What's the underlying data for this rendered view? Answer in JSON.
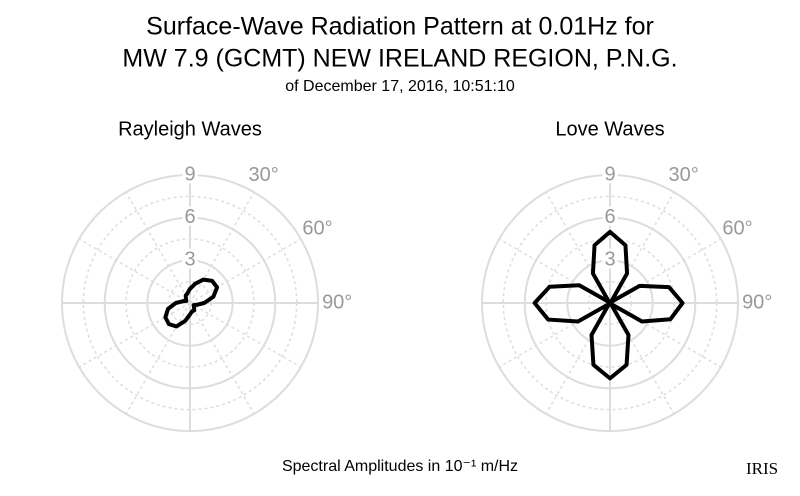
{
  "title": [
    "Surface-Wave Radiation Pattern at 0.01Hz for",
    "MW 7.9 (GCMT) NEW IRELAND REGION, P.N.G."
  ],
  "subtitle": "of December 17, 2016, 10:51:10",
  "caption": "Spectral Amplitudes in 10⁻¹ m/Hz",
  "logo": "IRIS",
  "chart_data": [
    {
      "type": "polar",
      "title": "Rayleigh Waves",
      "theta": [
        0,
        15,
        30,
        45,
        60,
        75,
        90,
        105,
        120,
        135,
        150,
        165,
        180,
        195,
        210,
        225,
        240,
        255,
        270,
        285,
        300,
        315,
        330,
        345
      ],
      "series": [
        {
          "color": "#000000",
          "values": [
            1.0,
            1.4,
            1.9,
            2.2,
            2.2,
            1.7,
            1.0,
            0.5,
            0.3,
            0.4,
            0.6,
            0.6,
            0.8,
            1.3,
            1.9,
            2.1,
            2.0,
            1.6,
            1.0,
            0.5,
            0.3,
            0.4,
            0.6,
            0.7
          ]
        }
      ],
      "rlim": [
        0,
        9
      ],
      "rticks": [
        3,
        6,
        9
      ],
      "thetaticks": [
        {
          "value": 30,
          "label": "30°"
        },
        {
          "value": 60,
          "label": "60°"
        },
        {
          "value": 90,
          "label": "90°"
        }
      ],
      "direction": "clockwise",
      "zero": "north",
      "grid": true
    },
    {
      "type": "polar",
      "title": "Love Waves",
      "theta": [
        0,
        15,
        30,
        45,
        60,
        75,
        90,
        105,
        120,
        135,
        150,
        165,
        180,
        195,
        210,
        225,
        240,
        255,
        270,
        285,
        300,
        315,
        330,
        345
      ],
      "series": [
        {
          "color": "#000000",
          "values": [
            5.0,
            4.2,
            2.4,
            0.1,
            2.4,
            4.3,
            5.1,
            4.4,
            2.6,
            0.1,
            2.6,
            4.5,
            5.3,
            4.5,
            2.6,
            0.1,
            2.6,
            4.5,
            5.3,
            4.4,
            2.5,
            0.1,
            2.4,
            4.2
          ]
        }
      ],
      "rlim": [
        0,
        9
      ],
      "rticks": [
        3,
        6,
        9
      ],
      "thetaticks": [
        {
          "value": 30,
          "label": "30°"
        },
        {
          "value": 60,
          "label": "60°"
        },
        {
          "value": 90,
          "label": "90°"
        }
      ],
      "direction": "clockwise",
      "zero": "north",
      "grid": true
    }
  ]
}
